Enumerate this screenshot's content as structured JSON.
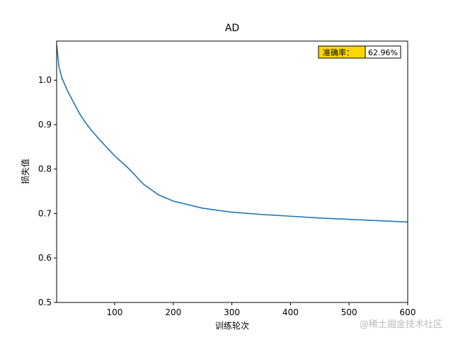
{
  "chart_data": {
    "type": "line",
    "title": "AD",
    "x_label": "训练轮次",
    "y_label": "损失值",
    "x": [
      1,
      5,
      10,
      20,
      30,
      40,
      50,
      60,
      75,
      100,
      125,
      150,
      175,
      200,
      250,
      300,
      350,
      400,
      450,
      500,
      550,
      600
    ],
    "series": [
      {
        "name": "loss",
        "color": "#1f77b4",
        "values": [
          1.08,
          1.03,
          1.005,
          0.975,
          0.95,
          0.925,
          0.905,
          0.888,
          0.865,
          0.83,
          0.8,
          0.765,
          0.742,
          0.728,
          0.712,
          0.703,
          0.698,
          0.694,
          0.69,
          0.687,
          0.684,
          0.681
        ]
      }
    ],
    "xlim": [
      1,
      600
    ],
    "xticks": [
      100,
      200,
      300,
      400,
      500,
      600
    ],
    "ylim": [
      0.5,
      1.088
    ],
    "yticks": [
      0.5,
      0.6,
      0.7,
      0.8,
      0.9,
      {
        "value": 1.0,
        "label": "1.0"
      }
    ],
    "annotation": {
      "label": "准确率：",
      "value": "62.96%",
      "label_color": "#ffd700"
    },
    "watermark": "@稀土掘金技术社区"
  }
}
